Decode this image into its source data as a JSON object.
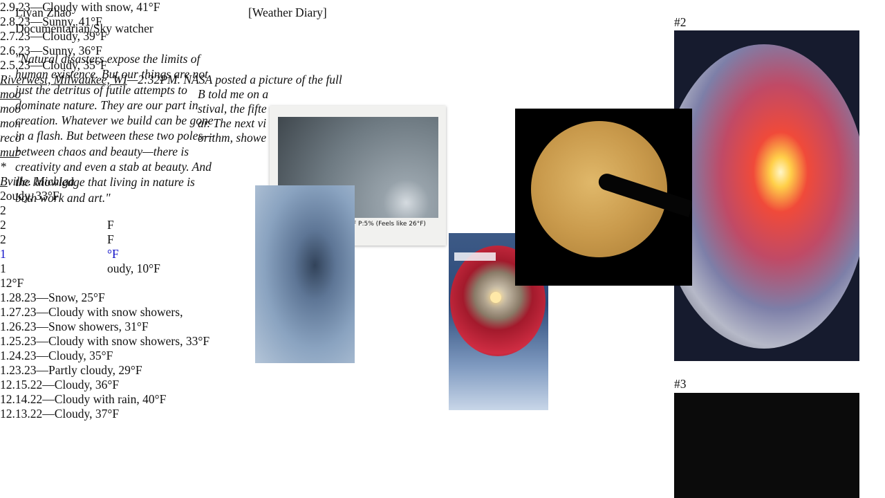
{
  "profile": {
    "name": "Liyan Zhao",
    "role": "Documentarian/Sky watcher",
    "quote": [
      "\"Natural disasters expose the limits of",
      "human existence. But our things are not",
      "just the detritus of futile attempts to",
      "dominate nature. They are our part in",
      "creation. Whatever we build can be gone",
      "in a flash. But between these two poles—",
      "between chaos and beauty—there is",
      "creativity and even a stab at beauty. And",
      "the knowledge that living in nature is",
      "both work and art.\""
    ]
  },
  "diary": {
    "heading": "[Weather Diary]",
    "lines": [
      [
        "2.9.23—Cloudy with snow, 41°F"
      ],
      [
        "2.8.23—Sunny, 41°F"
      ],
      [
        "2.7.23—Cloudy, 39°F"
      ],
      [
        "2.6.23—Sunny, 36°F"
      ],
      [
        "2.5.23—Cloudy, 35°F"
      ],
      [
        "Riverwest, Milwaukee, WI",
        "—2:32PM. NASA posted a picture of the full"
      ],
      [
        "moo",
        "B told me on a"
      ],
      [
        "moo",
        "stival, the fifte"
      ],
      [
        "mon",
        "ar. The next vi"
      ],
      [
        "reco",
        "orithm, showe"
      ],
      [
        "mur"
      ],
      [],
      [
        "*"
      ],
      [
        "B",
        "ville. Michiga"
      ],
      [],
      [
        "2",
        "oudy, 33°F"
      ],
      [
        "2"
      ],
      [
        "2",
        "F"
      ],
      [
        "2",
        "F"
      ],
      [
        "1",
        "°F"
      ],
      [
        "1",
        "oudy, 10°F"
      ],
      [
        "1",
        "2°F"
      ],
      [
        "1.28.23—Snow, 25°F"
      ],
      [
        "1.27.23—Cloudy with snow showers,"
      ],
      [
        "1.26.23—Snow showers, 31°F"
      ],
      [
        "1.25.23—Cloudy with snow showers, 33°F"
      ],
      [
        "1.24.23—Cloudy, 35°F"
      ],
      [
        "1.23.23—Partly cloudy, 29°F"
      ],
      [
        "12.15.22—Cloudy, 36°F"
      ],
      [
        "12.14.22—Cloudy with rain, 40°F"
      ],
      [
        "12.13.22—Cloudy, 37°F"
      ]
    ]
  },
  "images": {
    "polaroid_caption": "F   P:5% (Feels like 26°F)",
    "labels": [
      "#2",
      "#3"
    ]
  }
}
